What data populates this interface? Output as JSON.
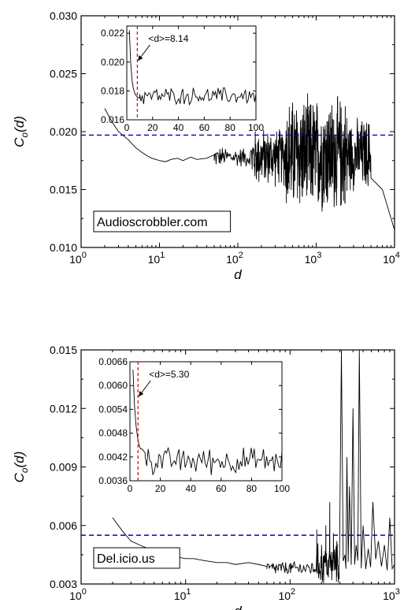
{
  "chart_data": [
    {
      "type": "line",
      "xscale": "log",
      "xlim": [
        1,
        10000
      ],
      "ylim": [
        0.01,
        0.03
      ],
      "xlabel": "d",
      "ylabel": "C_o(d)",
      "ylabel_main": "C",
      "ylabel_sub": "o",
      "ylabel_tail": "(d)",
      "x_ticks": [
        {
          "value": 1,
          "base": "10",
          "exp": "0"
        },
        {
          "value": 10,
          "base": "10",
          "exp": "1"
        },
        {
          "value": 100,
          "base": "10",
          "exp": "2"
        },
        {
          "value": 1000,
          "base": "10",
          "exp": "3"
        },
        {
          "value": 10000,
          "base": "10",
          "exp": "4"
        }
      ],
      "y_ticks": [
        {
          "value": 0.01,
          "label": "0.010"
        },
        {
          "value": 0.015,
          "label": "0.015"
        },
        {
          "value": 0.02,
          "label": "0.020"
        },
        {
          "value": 0.025,
          "label": "0.025"
        },
        {
          "value": 0.03,
          "label": "0.030"
        }
      ],
      "reference_line": {
        "y": 0.0197,
        "color": "#0000cc",
        "style": "dashed"
      },
      "legend_box": "Audioscrobbler.com",
      "series": {
        "color": "#000000",
        "smooth": [
          [
            2,
            0.022
          ],
          [
            2.5,
            0.0208
          ],
          [
            3,
            0.02
          ],
          [
            4,
            0.0193
          ],
          [
            5,
            0.0186
          ],
          [
            6,
            0.0182
          ],
          [
            7,
            0.0179
          ],
          [
            8,
            0.0177
          ],
          [
            9,
            0.0176
          ],
          [
            10,
            0.0175
          ],
          [
            12,
            0.0174
          ],
          [
            14,
            0.0176
          ],
          [
            17,
            0.0177
          ],
          [
            20,
            0.0175
          ],
          [
            25,
            0.0178
          ],
          [
            30,
            0.0176
          ],
          [
            40,
            0.0177
          ],
          [
            50,
            0.0175
          ]
        ],
        "noisy_segments": [
          {
            "x_start": 50,
            "x_end": 150,
            "center": 0.0178,
            "amplitude": 0.001,
            "points": 60
          },
          {
            "x_start": 150,
            "x_end": 400,
            "center": 0.0178,
            "amplitude": 0.0028,
            "points": 120
          },
          {
            "x_start": 400,
            "x_end": 2500,
            "center": 0.018,
            "amplitude": 0.0055,
            "points": 320
          },
          {
            "x_start": 2500,
            "x_end": 5000,
            "center": 0.018,
            "amplitude": 0.0035,
            "points": 90
          }
        ],
        "tail": [
          [
            5000,
            0.016
          ],
          [
            7000,
            0.015
          ],
          [
            10000,
            0.0115
          ]
        ]
      },
      "inset": {
        "xlim": [
          0,
          100
        ],
        "ylim": [
          0.016,
          0.0225
        ],
        "x_ticks": [
          {
            "value": 0,
            "label": "0"
          },
          {
            "value": 20,
            "label": "20"
          },
          {
            "value": 40,
            "label": "40"
          },
          {
            "value": 60,
            "label": "60"
          },
          {
            "value": 80,
            "label": "80"
          },
          {
            "value": 100,
            "label": "100"
          }
        ],
        "y_ticks": [
          {
            "value": 0.016,
            "label": "0.016"
          },
          {
            "value": 0.018,
            "label": "0.018"
          },
          {
            "value": 0.02,
            "label": "0.020"
          },
          {
            "value": 0.022,
            "label": "0.022"
          }
        ],
        "marker_x": 8.14,
        "marker_color": "#dd0000",
        "annotation": "<d>=8.14",
        "head": [
          [
            2,
            0.0222
          ],
          [
            3,
            0.02
          ],
          [
            4,
            0.0188
          ],
          [
            5,
            0.0182
          ],
          [
            6,
            0.0179
          ],
          [
            7,
            0.0177
          ],
          [
            8,
            0.0176
          ],
          [
            10,
            0.0175
          ]
        ],
        "noise": {
          "x_start": 10,
          "x_end": 100,
          "center": 0.01765,
          "amplitude": 0.0007,
          "points": 90
        }
      }
    },
    {
      "type": "line",
      "xscale": "log",
      "xlim": [
        1,
        1000
      ],
      "ylim": [
        0.003,
        0.015
      ],
      "xlabel": "d",
      "ylabel": "C_o(d)",
      "ylabel_main": "C",
      "ylabel_sub": "o",
      "ylabel_tail": "(d)",
      "x_ticks": [
        {
          "value": 1,
          "base": "10",
          "exp": "0"
        },
        {
          "value": 10,
          "base": "10",
          "exp": "1"
        },
        {
          "value": 100,
          "base": "10",
          "exp": "2"
        },
        {
          "value": 1000,
          "base": "10",
          "exp": "3"
        }
      ],
      "y_ticks": [
        {
          "value": 0.003,
          "label": "0.003"
        },
        {
          "value": 0.006,
          "label": "0.006"
        },
        {
          "value": 0.009,
          "label": "0.009"
        },
        {
          "value": 0.012,
          "label": "0.012"
        },
        {
          "value": 0.015,
          "label": "0.015"
        }
      ],
      "reference_line": {
        "y": 0.0055,
        "color": "#0000cc",
        "style": "dashed"
      },
      "legend_box": "Del.icio.us",
      "series": {
        "color": "#000000",
        "smooth": [
          [
            2,
            0.0064
          ],
          [
            2.5,
            0.0057
          ],
          [
            3,
            0.0052
          ],
          [
            4,
            0.0049
          ],
          [
            5,
            0.0047
          ],
          [
            6,
            0.0046
          ],
          [
            7,
            0.0044
          ],
          [
            8,
            0.0044
          ],
          [
            10,
            0.0043
          ],
          [
            12,
            0.0043
          ],
          [
            15,
            0.0042
          ],
          [
            20,
            0.0041
          ],
          [
            25,
            0.0041
          ],
          [
            30,
            0.004
          ],
          [
            40,
            0.0041
          ],
          [
            50,
            0.004
          ],
          [
            60,
            0.0039
          ]
        ],
        "noisy_segments": [
          {
            "x_start": 60,
            "x_end": 180,
            "center": 0.0038,
            "amplitude": 0.0004,
            "points": 80
          },
          {
            "x_start": 180,
            "x_end": 300,
            "center": 0.004,
            "amplitude": 0.0012,
            "points": 60
          }
        ],
        "spikes": [
          [
            180,
            0.0058
          ],
          [
            200,
            0.005
          ],
          [
            220,
            0.006
          ],
          [
            240,
            0.0072
          ],
          [
            260,
            0.0056
          ],
          [
            280,
            0.0052
          ],
          [
            310,
            0.015
          ],
          [
            335,
            0.0045
          ],
          [
            350,
            0.0095
          ],
          [
            370,
            0.008
          ],
          [
            400,
            0.012
          ],
          [
            430,
            0.005
          ],
          [
            460,
            0.015
          ],
          [
            500,
            0.006
          ],
          [
            560,
            0.0048
          ],
          [
            620,
            0.0072
          ],
          [
            700,
            0.0052
          ],
          [
            800,
            0.005
          ],
          [
            900,
            0.0064
          ],
          [
            1000,
            0.004
          ]
        ]
      },
      "inset": {
        "xlim": [
          0,
          100
        ],
        "ylim": [
          0.0036,
          0.0066
        ],
        "x_ticks": [
          {
            "value": 0,
            "label": "0"
          },
          {
            "value": 20,
            "label": "20"
          },
          {
            "value": 40,
            "label": "40"
          },
          {
            "value": 60,
            "label": "60"
          },
          {
            "value": 80,
            "label": "80"
          },
          {
            "value": 100,
            "label": "100"
          }
        ],
        "y_ticks": [
          {
            "value": 0.0036,
            "label": "0.0036"
          },
          {
            "value": 0.0042,
            "label": "0.0042"
          },
          {
            "value": 0.0048,
            "label": "0.0048"
          },
          {
            "value": 0.0054,
            "label": "0.0054"
          },
          {
            "value": 0.006,
            "label": "0.0060"
          },
          {
            "value": 0.0066,
            "label": "0.0066"
          }
        ],
        "marker_x": 5.3,
        "marker_color": "#dd0000",
        "annotation": "<d>=5.30",
        "head": [
          [
            2,
            0.0064
          ],
          [
            3,
            0.0055
          ],
          [
            4,
            0.005
          ],
          [
            5,
            0.0047
          ],
          [
            6,
            0.0045
          ],
          [
            7,
            0.0044
          ],
          [
            8,
            0.0044
          ],
          [
            10,
            0.0043
          ]
        ],
        "noise": {
          "x_start": 10,
          "x_end": 100,
          "center": 0.0041,
          "amplitude": 0.0004,
          "points": 90
        }
      }
    }
  ]
}
